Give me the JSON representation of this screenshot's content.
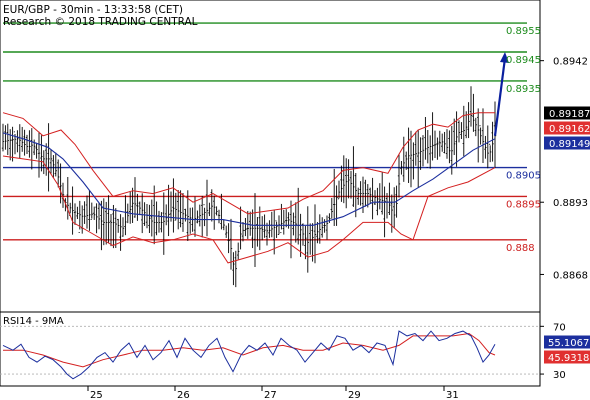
{
  "chart_data": [
    {
      "type": "line",
      "title": "EUR/GBP - 30min - 13:33:58 (CET)",
      "subtitle": "Research © 2018 TRADING CENTRAL",
      "x_tick_labels": [
        "25",
        "26",
        "27",
        "29",
        "31"
      ],
      "y_tick_labels": [
        "0.8942",
        "0.8893",
        "0.8868"
      ],
      "ylim": [
        0.8855,
        0.8963
      ],
      "price_tags": [
        {
          "label": "0.89187",
          "value": 0.89187,
          "bg": "#000000",
          "fg": "#ffffff"
        },
        {
          "label": "0.89162",
          "value": 0.89162,
          "bg": "#e03030",
          "fg": "#ffffff"
        },
        {
          "label": "0.89149",
          "value": 0.89149,
          "bg": "#1c2f9e",
          "fg": "#ffffff"
        }
      ],
      "levels": [
        {
          "label": "0.8955",
          "value": 0.8955,
          "color": "#1e8c1e"
        },
        {
          "label": "0.8945",
          "value": 0.8945,
          "color": "#1e8c1e"
        },
        {
          "label": "0.8935",
          "value": 0.8935,
          "color": "#1e8c1e"
        },
        {
          "label": "0.8905",
          "value": 0.8905,
          "color": "#1c2f9e"
        },
        {
          "label": "0.8895",
          "value": 0.8895,
          "color": "#cc1f1f"
        },
        {
          "label": "0.888",
          "value": 0.888,
          "color": "#cc1f1f"
        }
      ],
      "price_path": [
        [
          0,
          0.8914
        ],
        [
          15,
          0.8915
        ],
        [
          25,
          0.8912
        ],
        [
          30,
          0.8913
        ],
        [
          40,
          0.8908
        ],
        [
          48,
          0.8908
        ],
        [
          55,
          0.8902
        ],
        [
          62,
          0.8893
        ],
        [
          70,
          0.889
        ],
        [
          80,
          0.8888
        ],
        [
          90,
          0.8889
        ],
        [
          100,
          0.8886
        ],
        [
          110,
          0.8886
        ],
        [
          120,
          0.8884
        ],
        [
          130,
          0.8893
        ],
        [
          140,
          0.889
        ],
        [
          150,
          0.8886
        ],
        [
          160,
          0.8886
        ],
        [
          170,
          0.8891
        ],
        [
          180,
          0.8889
        ],
        [
          190,
          0.8887
        ],
        [
          200,
          0.8889
        ],
        [
          210,
          0.8892
        ],
        [
          220,
          0.8886
        ],
        [
          228,
          0.8877
        ],
        [
          232,
          0.8868
        ],
        [
          238,
          0.8883
        ],
        [
          245,
          0.8884
        ],
        [
          255,
          0.8884
        ],
        [
          265,
          0.8883
        ],
        [
          275,
          0.8885
        ],
        [
          285,
          0.8887
        ],
        [
          295,
          0.8885
        ],
        [
          305,
          0.8879
        ],
        [
          315,
          0.8883
        ],
        [
          325,
          0.8886
        ],
        [
          335,
          0.8896
        ],
        [
          345,
          0.8901
        ],
        [
          355,
          0.8896
        ],
        [
          365,
          0.8896
        ],
        [
          375,
          0.8894
        ],
        [
          385,
          0.8893
        ],
        [
          392,
          0.8888
        ],
        [
          398,
          0.8905
        ],
        [
          405,
          0.8909
        ],
        [
          415,
          0.891
        ],
        [
          425,
          0.8912
        ],
        [
          433,
          0.8913
        ],
        [
          440,
          0.8914
        ],
        [
          448,
          0.891
        ],
        [
          455,
          0.8917
        ],
        [
          462,
          0.8918
        ],
        [
          468,
          0.8923
        ],
        [
          474,
          0.8919
        ],
        [
          480,
          0.8914
        ],
        [
          486,
          0.8909
        ],
        [
          492,
          0.8916
        ]
      ],
      "ma_path": [
        [
          0,
          0.8917
        ],
        [
          20,
          0.8915
        ],
        [
          45,
          0.8912
        ],
        [
          60,
          0.8908
        ],
        [
          80,
          0.89
        ],
        [
          100,
          0.8891
        ],
        [
          130,
          0.8889
        ],
        [
          160,
          0.8888
        ],
        [
          190,
          0.8887
        ],
        [
          220,
          0.8887
        ],
        [
          250,
          0.8885
        ],
        [
          280,
          0.8885
        ],
        [
          310,
          0.8885
        ],
        [
          340,
          0.8888
        ],
        [
          370,
          0.8893
        ],
        [
          392,
          0.8893
        ],
        [
          410,
          0.8897
        ],
        [
          430,
          0.8901
        ],
        [
          450,
          0.8906
        ],
        [
          470,
          0.8911
        ],
        [
          492,
          0.8915
        ]
      ],
      "bb_upper_path": [
        [
          0,
          0.8924
        ],
        [
          20,
          0.8922
        ],
        [
          40,
          0.8916
        ],
        [
          58,
          0.8918
        ],
        [
          72,
          0.8913
        ],
        [
          90,
          0.8904
        ],
        [
          110,
          0.8895
        ],
        [
          130,
          0.8897
        ],
        [
          150,
          0.8896
        ],
        [
          170,
          0.8898
        ],
        [
          190,
          0.8893
        ],
        [
          210,
          0.8896
        ],
        [
          225,
          0.8893
        ],
        [
          245,
          0.8889
        ],
        [
          265,
          0.889
        ],
        [
          285,
          0.8891
        ],
        [
          300,
          0.8894
        ],
        [
          320,
          0.8897
        ],
        [
          340,
          0.8904
        ],
        [
          360,
          0.8905
        ],
        [
          385,
          0.8903
        ],
        [
          400,
          0.8912
        ],
        [
          415,
          0.8918
        ],
        [
          430,
          0.892
        ],
        [
          445,
          0.8919
        ],
        [
          460,
          0.8923
        ],
        [
          475,
          0.8924
        ],
        [
          492,
          0.8924
        ]
      ],
      "bb_lower_path": [
        [
          0,
          0.8909
        ],
        [
          20,
          0.8908
        ],
        [
          40,
          0.8907
        ],
        [
          55,
          0.8899
        ],
        [
          70,
          0.8886
        ],
        [
          90,
          0.8882
        ],
        [
          110,
          0.8878
        ],
        [
          130,
          0.8881
        ],
        [
          150,
          0.8879
        ],
        [
          170,
          0.888
        ],
        [
          190,
          0.8882
        ],
        [
          210,
          0.888
        ],
        [
          225,
          0.8872
        ],
        [
          245,
          0.8874
        ],
        [
          265,
          0.8876
        ],
        [
          285,
          0.8879
        ],
        [
          305,
          0.8874
        ],
        [
          325,
          0.8876
        ],
        [
          340,
          0.888
        ],
        [
          360,
          0.8886
        ],
        [
          385,
          0.8886
        ],
        [
          398,
          0.8882
        ],
        [
          410,
          0.888
        ],
        [
          425,
          0.8895
        ],
        [
          445,
          0.8898
        ],
        [
          465,
          0.89
        ],
        [
          492,
          0.8905
        ]
      ],
      "forecast_arrow": {
        "from": [
          492,
          0.8916
        ],
        "to": [
          502,
          0.8945
        ],
        "color": "#0a1f9e"
      }
    },
    {
      "type": "line",
      "title": "RSI14 - 9MA",
      "ylim": [
        20,
        82
      ],
      "y_tick_labels": [
        "70",
        "30"
      ],
      "y_tick_values": [
        70,
        30
      ],
      "price_tags": [
        {
          "label": "55.1067",
          "value": 55.1067,
          "bg": "#1c2f9e",
          "fg": "#ffffff"
        },
        {
          "label": "45.9318",
          "value": 45.9318,
          "bg": "#e03030",
          "fg": "#ffffff"
        }
      ],
      "rsi_path": [
        [
          0,
          54
        ],
        [
          10,
          50
        ],
        [
          18,
          55
        ],
        [
          26,
          44
        ],
        [
          34,
          40
        ],
        [
          42,
          45
        ],
        [
          50,
          42
        ],
        [
          58,
          36
        ],
        [
          64,
          30
        ],
        [
          70,
          26
        ],
        [
          78,
          30
        ],
        [
          86,
          36
        ],
        [
          94,
          44
        ],
        [
          102,
          48
        ],
        [
          110,
          40
        ],
        [
          118,
          50
        ],
        [
          126,
          56
        ],
        [
          134,
          44
        ],
        [
          142,
          54
        ],
        [
          150,
          42
        ],
        [
          158,
          48
        ],
        [
          166,
          58
        ],
        [
          174,
          44
        ],
        [
          182,
          60
        ],
        [
          190,
          50
        ],
        [
          198,
          44
        ],
        [
          206,
          54
        ],
        [
          214,
          60
        ],
        [
          222,
          44
        ],
        [
          230,
          32
        ],
        [
          238,
          46
        ],
        [
          246,
          54
        ],
        [
          254,
          50
        ],
        [
          262,
          56
        ],
        [
          270,
          46
        ],
        [
          278,
          60
        ],
        [
          286,
          54
        ],
        [
          294,
          50
        ],
        [
          302,
          40
        ],
        [
          310,
          48
        ],
        [
          318,
          56
        ],
        [
          326,
          50
        ],
        [
          334,
          62
        ],
        [
          342,
          60
        ],
        [
          350,
          50
        ],
        [
          358,
          54
        ],
        [
          366,
          48
        ],
        [
          374,
          56
        ],
        [
          382,
          54
        ],
        [
          390,
          38
        ],
        [
          396,
          66
        ],
        [
          404,
          62
        ],
        [
          412,
          64
        ],
        [
          420,
          58
        ],
        [
          428,
          66
        ],
        [
          436,
          58
        ],
        [
          444,
          60
        ],
        [
          452,
          64
        ],
        [
          460,
          66
        ],
        [
          468,
          62
        ],
        [
          474,
          52
        ],
        [
          480,
          40
        ],
        [
          486,
          46
        ],
        [
          492,
          55
        ]
      ],
      "rsi_ma_path": [
        [
          0,
          50
        ],
        [
          20,
          50
        ],
        [
          40,
          46
        ],
        [
          60,
          40
        ],
        [
          80,
          36
        ],
        [
          100,
          42
        ],
        [
          120,
          46
        ],
        [
          140,
          50
        ],
        [
          160,
          50
        ],
        [
          180,
          52
        ],
        [
          200,
          50
        ],
        [
          220,
          52
        ],
        [
          240,
          46
        ],
        [
          260,
          52
        ],
        [
          280,
          54
        ],
        [
          300,
          50
        ],
        [
          320,
          50
        ],
        [
          340,
          56
        ],
        [
          360,
          54
        ],
        [
          380,
          50
        ],
        [
          396,
          54
        ],
        [
          410,
          62
        ],
        [
          430,
          62
        ],
        [
          450,
          62
        ],
        [
          466,
          64
        ],
        [
          476,
          58
        ],
        [
          486,
          48
        ],
        [
          492,
          46
        ]
      ]
    }
  ]
}
